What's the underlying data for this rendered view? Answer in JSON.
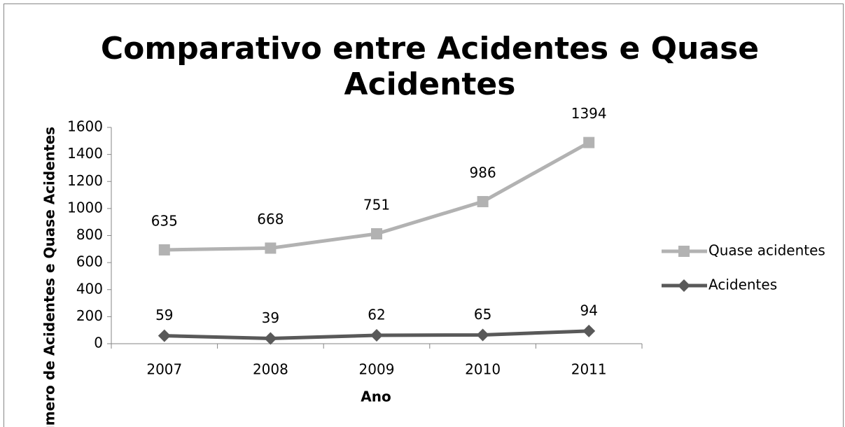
{
  "chart_data": {
    "type": "line",
    "stacked": true,
    "title": "Comparativo entre Acidentes e Quase Acidentes",
    "xlabel": "Ano",
    "ylabel": "Número de Acidentes e Quase Acidentes",
    "categories": [
      "2007",
      "2008",
      "2009",
      "2010",
      "2011"
    ],
    "series": [
      {
        "name": "Quase acidentes",
        "color": "#b2b2b2",
        "marker": "square",
        "values": [
          635,
          668,
          751,
          986,
          1394
        ]
      },
      {
        "name": "Acidentes",
        "color": "#595959",
        "marker": "diamond",
        "values": [
          59,
          39,
          62,
          65,
          94
        ]
      }
    ],
    "ylim": [
      0,
      1600
    ],
    "yticks": [
      0,
      200,
      400,
      600,
      800,
      1000,
      1200,
      1400,
      1600
    ],
    "grid": false,
    "legend": "right"
  }
}
